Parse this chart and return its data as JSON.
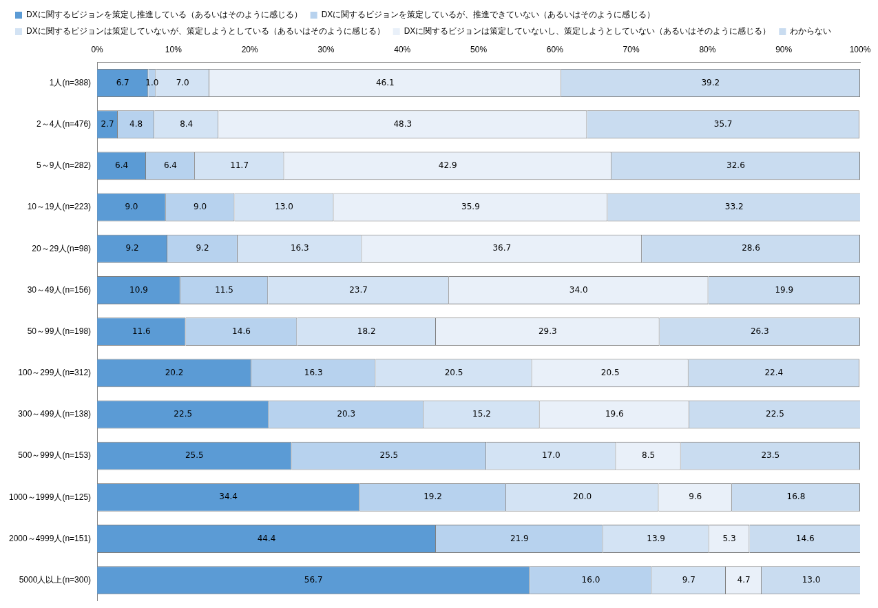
{
  "chart_data": {
    "type": "bar",
    "orientation": "horizontal",
    "stacked": true,
    "categories": [
      "1人(n=388)",
      "2～4人(n=476)",
      "5～9人(n=282)",
      "10～19人(n=223)",
      "20～29人(n=98)",
      "30～49人(n=156)",
      "50～99人(n=198)",
      "100～299人(n=312)",
      "300～499人(n=138)",
      "500～999人(n=153)",
      "1000～1999人(n=125)",
      "2000～4999人(n=151)",
      "5000人以上(n=300)"
    ],
    "series": [
      {
        "name": "DXに関するビジョンを策定し推進している（あるいはそのように感じる）",
        "color": "#5b9bd5",
        "values": [
          6.7,
          2.7,
          6.4,
          9.0,
          9.2,
          10.9,
          11.6,
          20.2,
          22.5,
          25.5,
          34.4,
          44.4,
          56.7
        ],
        "value_labels": [
          "6.7",
          "2.7",
          "6.4",
          "9.0",
          "9.2",
          "10.9",
          "11.6",
          "20.2",
          "22.5",
          "25.5",
          "34.4",
          "44.4",
          "56.7"
        ]
      },
      {
        "name": "DXに関するビジョンを策定しているが、推進できていない（あるいはそのように感じる）",
        "color": "#b7d2ee",
        "values": [
          1.0,
          4.8,
          6.4,
          9.0,
          9.2,
          11.5,
          14.6,
          16.3,
          20.3,
          25.5,
          19.2,
          21.9,
          16.0
        ],
        "value_labels": [
          "1.0",
          "4.8",
          "6.4",
          "9.0",
          "9.2",
          "11.5",
          "14.6",
          "16.3",
          "20.3",
          "25.5",
          "19.2",
          "21.9",
          "16.0"
        ]
      },
      {
        "name": "DXに関するビジョンは策定していないが、策定しようとしている（あるいはそのように感じる）",
        "color": "#d3e3f4",
        "values": [
          7.0,
          8.4,
          11.7,
          13.0,
          16.3,
          23.7,
          18.2,
          20.5,
          15.2,
          17.0,
          20.0,
          13.9,
          9.7
        ],
        "value_labels": [
          "7.0",
          "8.4",
          "11.7",
          "13.0",
          "16.3",
          "23.7",
          "18.2",
          "20.5",
          "15.2",
          "17.0",
          "20.0",
          "13.9",
          "9.7"
        ]
      },
      {
        "name": "DXに関するビジョンは策定していないし、策定しようとしていない（あるいはそのように感じる）",
        "color": "#e9f0f9",
        "values": [
          46.1,
          48.3,
          42.9,
          35.9,
          36.7,
          34.0,
          29.3,
          20.5,
          19.6,
          8.5,
          9.6,
          5.3,
          4.7
        ],
        "value_labels": [
          "46.1",
          "48.3",
          "42.9",
          "35.9",
          "36.7",
          "34.0",
          "29.3",
          "20.5",
          "19.6",
          "8.5",
          "9.6",
          "5.3",
          "4.7"
        ]
      },
      {
        "name": "わからない",
        "color": "#c9dcf0",
        "values": [
          39.2,
          35.7,
          32.6,
          33.2,
          28.6,
          19.9,
          26.3,
          22.4,
          22.5,
          23.5,
          16.8,
          14.6,
          13.0
        ],
        "value_labels": [
          "39.2",
          "35.7",
          "32.6",
          "33.2",
          "28.6",
          "19.9",
          "26.3",
          "22.4",
          "22.5",
          "23.5",
          "16.8",
          "14.6",
          "13.0"
        ]
      }
    ],
    "xlim": [
      0,
      100
    ],
    "xticks": [
      {
        "value": 0,
        "label": "0%"
      },
      {
        "value": 10,
        "label": "10%"
      },
      {
        "value": 20,
        "label": "20%"
      },
      {
        "value": 30,
        "label": "30%"
      },
      {
        "value": 40,
        "label": "40%"
      },
      {
        "value": 50,
        "label": "50%"
      },
      {
        "value": 60,
        "label": "60%"
      },
      {
        "value": 70,
        "label": "70%"
      },
      {
        "value": 80,
        "label": "80%"
      },
      {
        "value": 90,
        "label": "90%"
      },
      {
        "value": 100,
        "label": "100%"
      }
    ],
    "grid": false,
    "legend": "top"
  }
}
